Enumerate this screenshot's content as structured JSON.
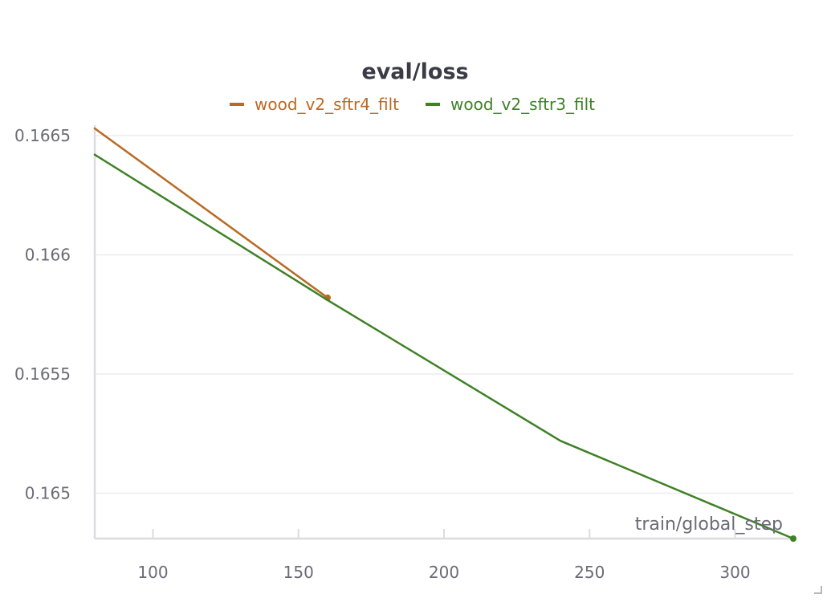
{
  "chart_data": {
    "type": "line",
    "title": "eval/loss",
    "xlabel": "train/global_step",
    "ylabel": "",
    "xlim": [
      80,
      320
    ],
    "ylim": [
      0.16481,
      0.16653
    ],
    "x_ticks": [
      100,
      150,
      200,
      250,
      300
    ],
    "x_tick_labels": [
      "100",
      "150",
      "200",
      "250",
      "300"
    ],
    "y_ticks": [
      0.165,
      0.1655,
      0.166,
      0.1665
    ],
    "y_tick_labels": [
      "0.165",
      "0.1655",
      "0.166",
      "0.1665"
    ],
    "grid": true,
    "legend_position": "top",
    "series": [
      {
        "name": "wood_v2_sftr4_filt",
        "color": "#b86a25",
        "x": [
          80,
          160
        ],
        "y": [
          0.16653,
          0.16582
        ]
      },
      {
        "name": "wood_v2_sftr3_filt",
        "color": "#3e8126",
        "x": [
          80,
          160,
          240,
          320
        ],
        "y": [
          0.16642,
          0.16581,
          0.16522,
          0.16481
        ]
      }
    ]
  }
}
